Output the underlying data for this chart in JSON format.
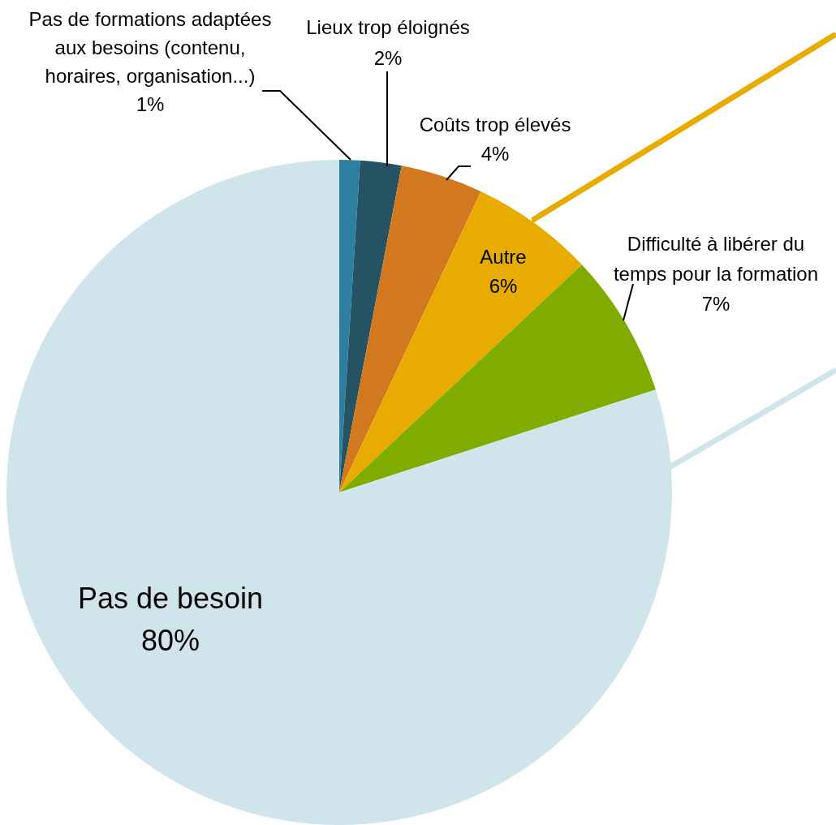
{
  "chart_data": {
    "type": "pie",
    "categories": [
      "Pas de formations adaptées aux besoins (contenu, horaires, organisation...)",
      "Lieux trop éloignés",
      "Coûts trop élevés",
      "Autre",
      "Difficulté à libérer du temps pour la formation",
      "Pas de besoin"
    ],
    "values": [
      1,
      2,
      4,
      6,
      7,
      80
    ],
    "value_labels": [
      "1%",
      "2%",
      "4%",
      "6%",
      "7%",
      "80%"
    ],
    "colors": [
      "#2e7fa0",
      "#265363",
      "#d2781e",
      "#e8ab00",
      "#80ac00",
      "#d0e4ec"
    ],
    "legend": false
  }
}
